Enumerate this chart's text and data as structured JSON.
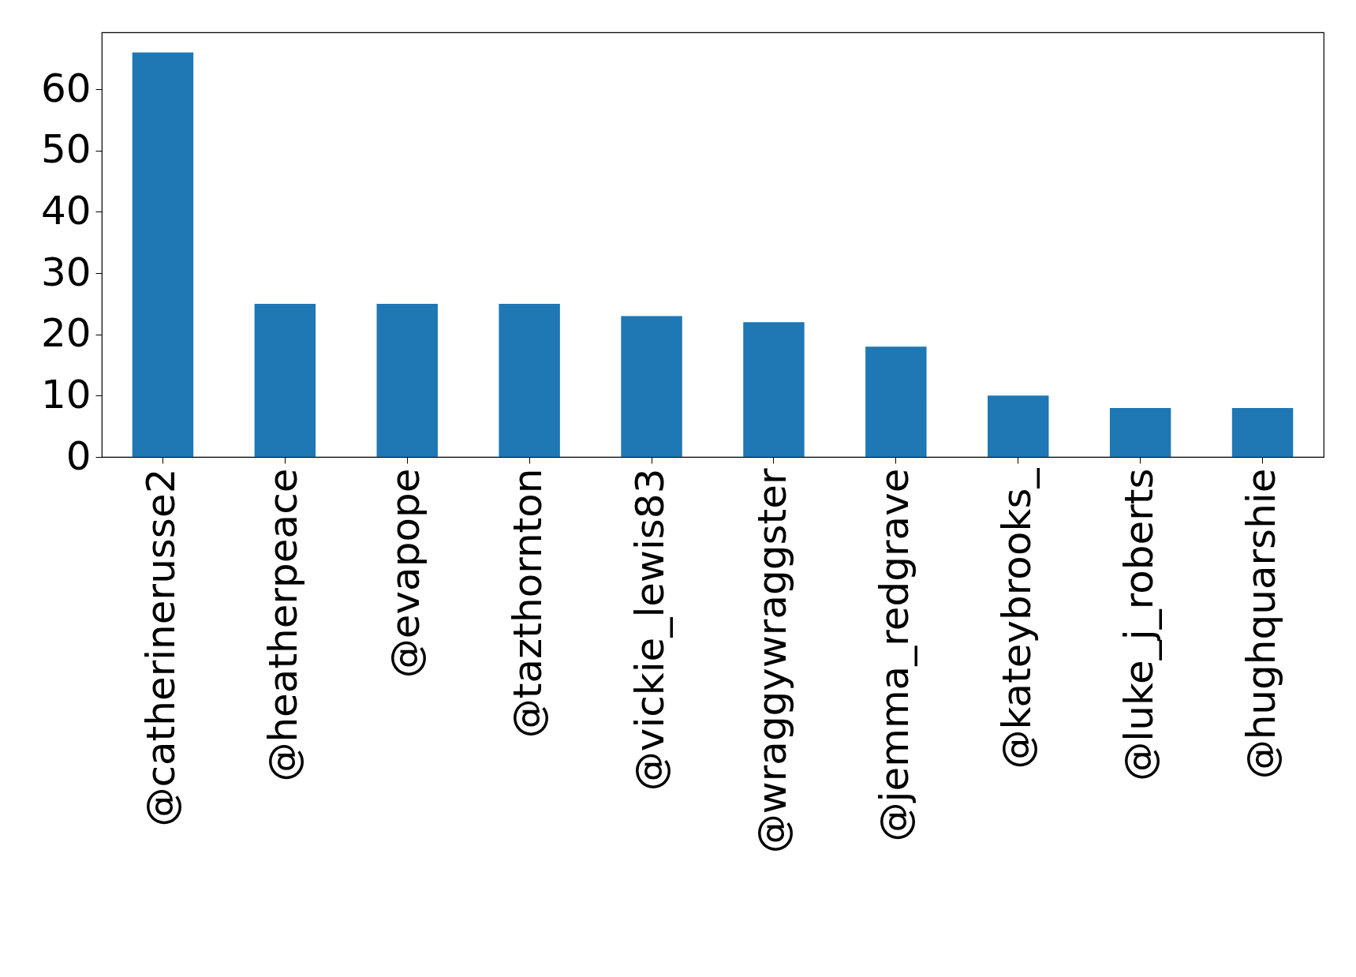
{
  "chart_data": {
    "type": "bar",
    "categories": [
      "@catherinerusse2",
      "@heatherpeace",
      "@evapope",
      "@tazthornton",
      "@vickie_lewis83",
      "@wraggywraggster",
      "@jemma_redgrave",
      "@kateybrooks_",
      "@luke_j_roberts",
      "@hughquarshie"
    ],
    "values": [
      66,
      25,
      25,
      25,
      23,
      22,
      18,
      10,
      8,
      8
    ],
    "color": "#1f77b4",
    "ylim": [
      0,
      69.3
    ],
    "yticks": [
      0,
      10,
      20,
      30,
      40,
      50,
      60
    ],
    "grid": false
  }
}
